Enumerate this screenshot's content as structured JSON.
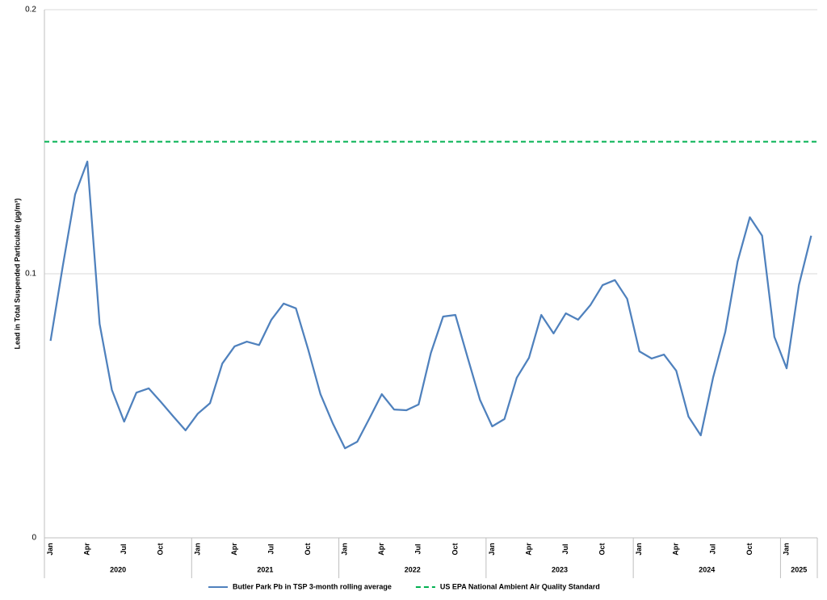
{
  "chart_data": {
    "type": "line",
    "y_label": "Lead in Total Suspended Particulate (µg/m³)",
    "categories": [
      "Jan",
      null,
      null,
      "Apr",
      null,
      null,
      "Jul",
      null,
      null,
      "Oct",
      null,
      null,
      "Jan",
      null,
      null,
      "Apr",
      null,
      null,
      "Jul",
      null,
      null,
      "Oct",
      null,
      null,
      "Jan",
      null,
      null,
      "Apr",
      null,
      null,
      "Jul",
      null,
      null,
      "Oct",
      null,
      null,
      "Jan",
      null,
      null,
      "Apr",
      null,
      null,
      "Jul",
      null,
      null,
      "Oct",
      null,
      null,
      "Jan",
      null,
      null,
      "Apr",
      null,
      null,
      "Jul",
      null,
      null,
      "Oct",
      null,
      null,
      "Jan",
      null,
      null
    ],
    "category_years": [
      "2020",
      "2020",
      "2020",
      "2020",
      "2020",
      "2020",
      "2020",
      "2020",
      "2020",
      "2020",
      "2020",
      "2020",
      "2021",
      "2021",
      "2021",
      "2021",
      "2021",
      "2021",
      "2021",
      "2021",
      "2021",
      "2021",
      "2021",
      "2021",
      "2022",
      "2022",
      "2022",
      "2022",
      "2022",
      "2022",
      "2022",
      "2022",
      "2022",
      "2022",
      "2022",
      "2022",
      "2023",
      "2023",
      "2023",
      "2023",
      "2023",
      "2023",
      "2023",
      "2023",
      "2023",
      "2023",
      "2023",
      "2023",
      "2024",
      "2024",
      "2024",
      "2024",
      "2024",
      "2024",
      "2024",
      "2024",
      "2024",
      "2024",
      "2024",
      "2024",
      "2025",
      "2025",
      "2025"
    ],
    "series": [
      {
        "name": "Butler Park Pb in TSP 3-month rolling average",
        "color": "#4f81bd",
        "values": [
          0.0746,
          0.103,
          0.13,
          0.1425,
          0.081,
          0.056,
          0.044,
          0.055,
          0.0566,
          0.0514,
          0.046,
          0.0407,
          0.047,
          0.051,
          0.066,
          0.0725,
          0.0743,
          0.073,
          0.0826,
          0.0887,
          0.0869,
          0.0713,
          0.0544,
          0.0434,
          0.0339,
          0.0364,
          0.0453,
          0.0544,
          0.0486,
          0.0483,
          0.0505,
          0.07,
          0.0838,
          0.0844,
          0.0682,
          0.0523,
          0.0422,
          0.045,
          0.0606,
          0.0682,
          0.0844,
          0.0774,
          0.085,
          0.0826,
          0.0881,
          0.0957,
          0.0976,
          0.0905,
          0.0706,
          0.0679,
          0.0694,
          0.0633,
          0.0459,
          0.0388,
          0.0606,
          0.078,
          0.1046,
          0.1214,
          0.1144,
          0.0761,
          0.0642,
          0.0957,
          0.1144
        ]
      }
    ],
    "reference_lines": [
      {
        "name": "US EPA National Ambient Air Quality Standard",
        "value": 0.15,
        "color": "#00b050",
        "dashed": true
      }
    ],
    "ylim": [
      0,
      0.2
    ],
    "yticks": [
      0,
      0.1,
      0.2
    ],
    "grid": true,
    "legend": "bottom"
  }
}
